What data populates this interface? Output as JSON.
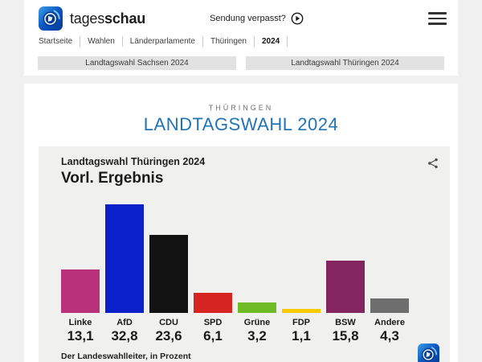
{
  "header": {
    "brand": {
      "regular": "tages",
      "bold": "schau"
    },
    "sendung_label": "Sendung verpasst?",
    "icons": {
      "logo": "tagesschau-logo",
      "play": "play-icon",
      "menu": "hamburger-icon"
    }
  },
  "breadcrumb": {
    "items": [
      "Startseite",
      "Wahlen",
      "Länderparlamente",
      "Thüringen",
      "2024"
    ],
    "active": "2024"
  },
  "tabs": [
    {
      "label": "Landtagswahl Sachsen 2024"
    },
    {
      "label": "Landtagswahl Thüringen 2024"
    }
  ],
  "page": {
    "overline": "THÜRINGEN",
    "title": "LANDTAGSWAHL 2024",
    "title_color": "#2274b5"
  },
  "chart_card": {
    "title": "Landtagswahl Thüringen 2024",
    "subtitle": "Vorl. Ergebnis",
    "source": "Der Landeswahlleiter, in Prozent",
    "icons": {
      "share": "share-icon",
      "logo": "tagesschau-logo"
    }
  },
  "chart_data": {
    "type": "bar",
    "title": "Landtagswahl Thüringen 2024",
    "subtitle": "Vorl. Ergebnis",
    "categories": [
      "Linke",
      "AfD",
      "CDU",
      "SPD",
      "Grüne",
      "FDP",
      "BSW",
      "Andere"
    ],
    "values": [
      13.1,
      32.8,
      23.6,
      6.1,
      3.2,
      1.1,
      15.8,
      4.3
    ],
    "value_labels": [
      "13,1",
      "32,8",
      "23,6",
      "6,1",
      "3,2",
      "1,1",
      "15,8",
      "4,3"
    ],
    "colors": [
      "#b93179",
      "#0b20c8",
      "#121212",
      "#d62420",
      "#6fbb26",
      "#f8ca00",
      "#83265f",
      "#6e6e6e"
    ],
    "unit": "Prozent",
    "ylim": [
      0,
      32.8
    ],
    "grid": false,
    "legend": "none",
    "source": "Der Landeswahlleiter, in Prozent"
  }
}
